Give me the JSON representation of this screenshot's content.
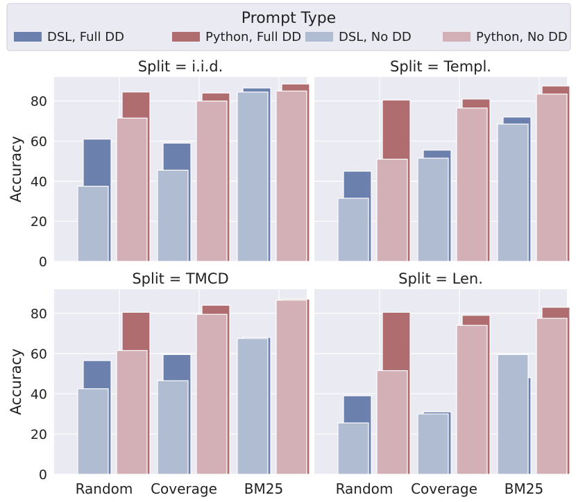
{
  "chart_data": {
    "type": "bar",
    "layout": "2x2 facet grid",
    "legend": {
      "title": "Prompt Type",
      "position": "top",
      "entries": [
        "DSL, Full DD",
        "Python, Full DD",
        "DSL, No DD",
        "Python, No DD"
      ]
    },
    "colors": {
      "DSL, Full DD": "#6b80ad",
      "Python, Full DD": "#b06d70",
      "DSL, No DD": "#b0bcd1",
      "Python, No DD": "#d2b0b6",
      "panel_bg": "#eaeaf2",
      "grid": "#ffffff"
    },
    "categories": [
      "Random",
      "Coverage",
      "BM25"
    ],
    "ylabel": "Accuracy",
    "xlabel": "",
    "ylim": [
      0,
      92
    ],
    "yticks": [
      0,
      20,
      40,
      60,
      80
    ],
    "grid": true,
    "panels": [
      {
        "title": "Split = i.i.d.",
        "series": [
          {
            "name": "DSL, Full DD",
            "values": [
              61,
              59,
              86.5
            ]
          },
          {
            "name": "Python, Full DD",
            "values": [
              84.5,
              84,
              88.5
            ]
          },
          {
            "name": "DSL, No DD",
            "values": [
              37.5,
              45.5,
              84.5
            ]
          },
          {
            "name": "Python, No DD",
            "values": [
              71.5,
              80,
              85
            ]
          }
        ]
      },
      {
        "title": "Split = Templ.",
        "series": [
          {
            "name": "DSL, Full DD",
            "values": [
              45,
              55.5,
              72
            ]
          },
          {
            "name": "Python, Full DD",
            "values": [
              80.5,
              81,
              87.5
            ]
          },
          {
            "name": "DSL, No DD",
            "values": [
              31.5,
              51.5,
              68.5
            ]
          },
          {
            "name": "Python, No DD",
            "values": [
              51,
              76.5,
              83.5
            ]
          }
        ]
      },
      {
        "title": "Split = TMCD",
        "series": [
          {
            "name": "DSL, Full DD",
            "values": [
              56.5,
              59.5,
              68
            ]
          },
          {
            "name": "Python, Full DD",
            "values": [
              80.5,
              84,
              87
            ]
          },
          {
            "name": "DSL, No DD",
            "values": [
              42.5,
              46.5,
              67.5
            ]
          },
          {
            "name": "Python, No DD",
            "values": [
              61.5,
              79.5,
              86.5
            ]
          }
        ]
      },
      {
        "title": "Split = Len.",
        "series": [
          {
            "name": "DSL, Full DD",
            "values": [
              39,
              31,
              48
            ]
          },
          {
            "name": "Python, Full DD",
            "values": [
              80.5,
              79,
              83
            ]
          },
          {
            "name": "DSL, No DD",
            "values": [
              25.5,
              30,
              59.5
            ]
          },
          {
            "name": "Python, No DD",
            "values": [
              51.5,
              74,
              77.5
            ]
          }
        ]
      }
    ]
  }
}
